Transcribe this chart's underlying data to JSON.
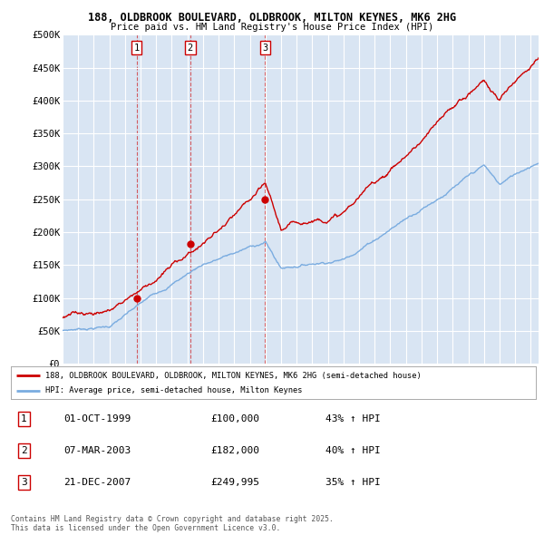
{
  "title_line1": "188, OLDBROOK BOULEVARD, OLDBROOK, MILTON KEYNES, MK6 2HG",
  "title_line2": "Price paid vs. HM Land Registry's House Price Index (HPI)",
  "ylim": [
    0,
    500000
  ],
  "yticks": [
    0,
    50000,
    100000,
    150000,
    200000,
    250000,
    300000,
    350000,
    400000,
    450000,
    500000
  ],
  "ytick_labels": [
    "£0",
    "£50K",
    "£100K",
    "£150K",
    "£200K",
    "£250K",
    "£300K",
    "£350K",
    "£400K",
    "£450K",
    "£500K"
  ],
  "bg_color": "#d9e5f3",
  "grid_color": "#ffffff",
  "sale_color": "#cc0000",
  "hpi_color": "#7aace0",
  "sale_dates_num": [
    1999.75,
    2003.18,
    2007.97
  ],
  "sale_prices": [
    100000,
    182000,
    249995
  ],
  "sale_labels": [
    "1",
    "2",
    "3"
  ],
  "legend_sale_label": "188, OLDBROOK BOULEVARD, OLDBROOK, MILTON KEYNES, MK6 2HG (semi-detached house)",
  "legend_hpi_label": "HPI: Average price, semi-detached house, Milton Keynes",
  "table_data": [
    [
      "1",
      "01-OCT-1999",
      "£100,000",
      "43% ↑ HPI"
    ],
    [
      "2",
      "07-MAR-2003",
      "£182,000",
      "40% ↑ HPI"
    ],
    [
      "3",
      "21-DEC-2007",
      "£249,995",
      "35% ↑ HPI"
    ]
  ],
  "footer_text": "Contains HM Land Registry data © Crown copyright and database right 2025.\nThis data is licensed under the Open Government Licence v3.0.",
  "xmin": 1995,
  "xmax": 2025.5
}
